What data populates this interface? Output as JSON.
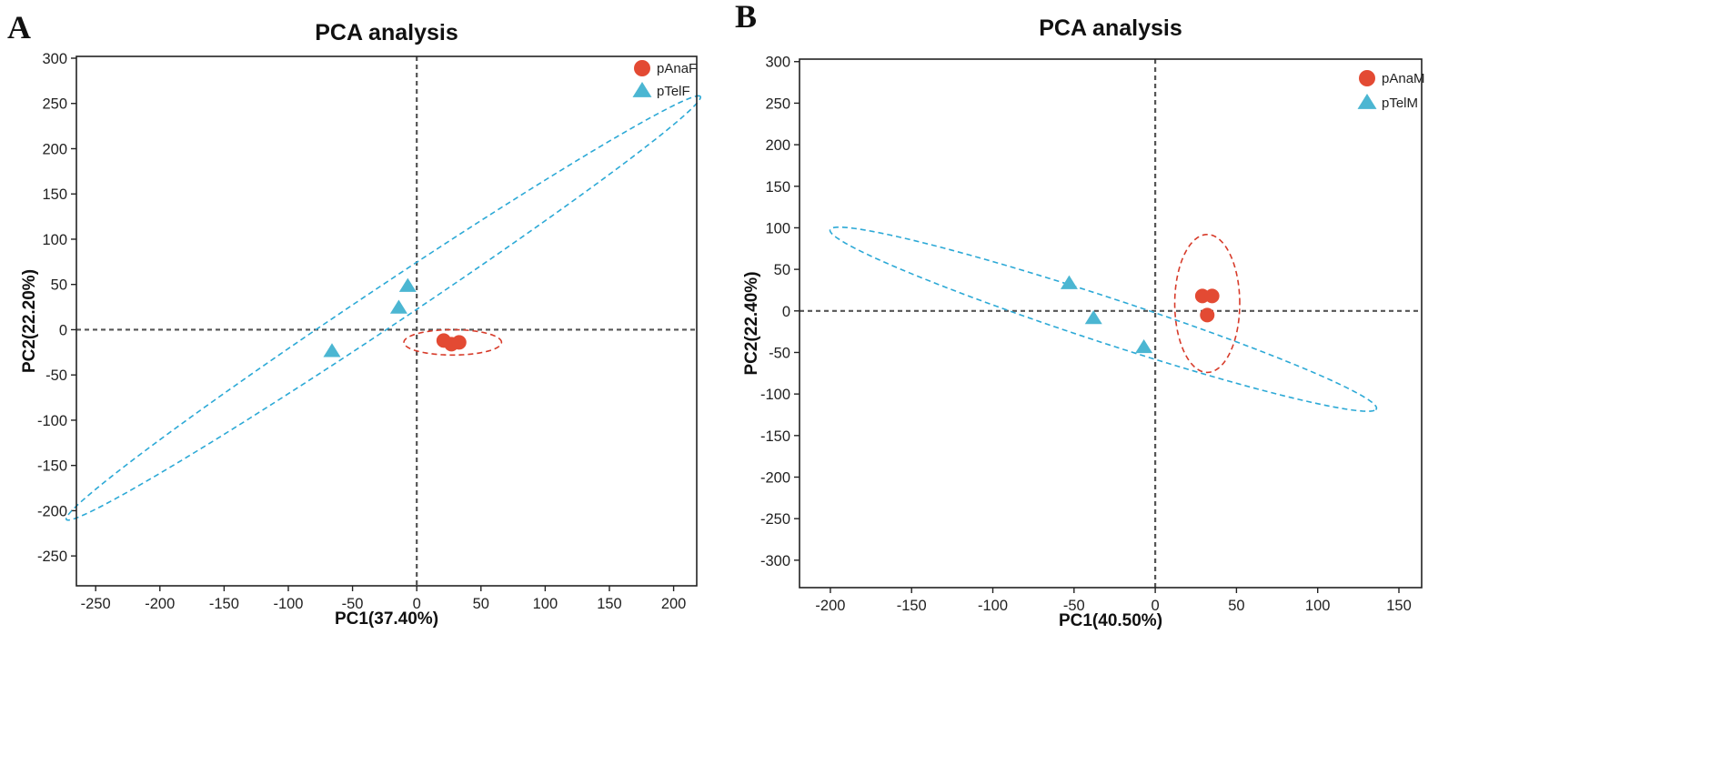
{
  "colors": {
    "red": "#e34a33",
    "blue": "#4bb6d2",
    "ellipse_red": "#d73b2a",
    "ellipse_blue": "#2ca9d6",
    "axis": "#222222",
    "zero_line": "#555555"
  },
  "chart_data": [
    {
      "panel_label": "A",
      "type": "scatter",
      "title": "PCA analysis",
      "xlabel": "PC1(37.40%)",
      "ylabel": "PC2(22.20%)",
      "xlim": [
        -265,
        218
      ],
      "ylim": [
        -283,
        302
      ],
      "xticks": [
        -250,
        -200,
        -150,
        -100,
        -50,
        0,
        50,
        100,
        150,
        200
      ],
      "yticks": [
        300,
        250,
        200,
        150,
        100,
        50,
        0,
        -50,
        -100,
        -150,
        -200,
        -250
      ],
      "xtick_labels": [
        "-250",
        "-200",
        "-150",
        "-100",
        "-50",
        "0",
        "50",
        "100",
        "150",
        "200"
      ],
      "ytick_labels": [
        "300",
        "250",
        "200",
        "150",
        "100",
        "50",
        "0",
        "-50",
        "-100",
        "-150",
        "-200",
        "-250"
      ],
      "legend_position": "top-right",
      "series": [
        {
          "name": "pAnaF",
          "marker": "circle",
          "color": "#e34a33",
          "points": [
            [
              21,
              -12
            ],
            [
              27,
              -16
            ],
            [
              33,
              -14
            ]
          ],
          "ellipse": {
            "cx": 28,
            "cy": -14,
            "rx": 38,
            "ry": 14,
            "angle": 0
          }
        },
        {
          "name": "pTelF",
          "marker": "triangle",
          "color": "#4bb6d2",
          "points": [
            [
              -7,
              48
            ],
            [
              -14,
              24
            ],
            [
              -66,
              -24
            ]
          ],
          "ellipse": {
            "cx": -26,
            "cy": 24,
            "rx": 340,
            "ry": 19,
            "angle": 43.5
          }
        }
      ]
    },
    {
      "panel_label": "B",
      "type": "scatter",
      "title": "PCA analysis",
      "xlabel": "PC1(40.50%)",
      "ylabel": "PC2(22.40%)",
      "xlim": [
        -219,
        164
      ],
      "ylim": [
        -333,
        303
      ],
      "xticks": [
        -200,
        -150,
        -100,
        -50,
        0,
        50,
        100,
        150
      ],
      "yticks": [
        300,
        250,
        200,
        150,
        100,
        50,
        0,
        -50,
        -100,
        -150,
        -200,
        -250,
        -300
      ],
      "xtick_labels": [
        "-200",
        "-150",
        "-100",
        "-50",
        "0",
        "50",
        "100",
        "150"
      ],
      "ytick_labels": [
        "300",
        "250",
        "200",
        "150",
        "100",
        "50",
        "0",
        "-50",
        "-100",
        "-150",
        "-200",
        "-250",
        "-300"
      ],
      "legend_position": "top-right",
      "series": [
        {
          "name": "pAnaM",
          "marker": "circle",
          "color": "#e34a33",
          "points": [
            [
              29,
              18
            ],
            [
              35,
              18
            ],
            [
              32,
              -5
            ]
          ],
          "ellipse": {
            "cx": 32,
            "cy": 9,
            "rx": 20,
            "ry": 83,
            "angle": 0
          }
        },
        {
          "name": "pTelM",
          "marker": "triangle",
          "color": "#4bb6d2",
          "points": [
            [
              -53,
              33
            ],
            [
              -38,
              -9
            ],
            [
              -7,
              -44
            ]
          ],
          "ellipse": {
            "cx": -32,
            "cy": -10,
            "rx": 200,
            "ry": 24,
            "angle": -33
          }
        }
      ]
    }
  ]
}
